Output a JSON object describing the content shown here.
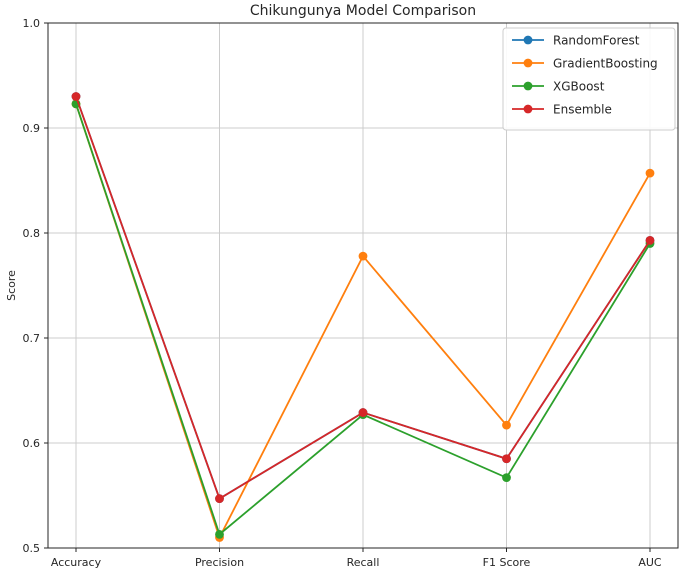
{
  "chart_data": {
    "type": "line",
    "title": "Chikungunya Model Comparison",
    "xlabel": "",
    "ylabel": "Score",
    "categories": [
      "Accuracy",
      "Precision",
      "Recall",
      "F1 Score",
      "AUC"
    ],
    "series": [
      {
        "name": "RandomForest",
        "color": "#1f77b4",
        "values": [
          0.93,
          0.547,
          0.629,
          0.585,
          0.793
        ]
      },
      {
        "name": "GradientBoosting",
        "color": "#ff7f0e",
        "values": [
          0.923,
          0.51,
          0.778,
          0.617,
          0.857
        ]
      },
      {
        "name": "XGBoost",
        "color": "#2ca02c",
        "values": [
          0.923,
          0.513,
          0.627,
          0.567,
          0.79
        ]
      },
      {
        "name": "Ensemble",
        "color": "#d62728",
        "values": [
          0.93,
          0.547,
          0.629,
          0.585,
          0.793
        ]
      }
    ],
    "ylim": [
      0.5,
      1.0
    ],
    "yticks": [
      0.5,
      0.6,
      0.7,
      0.8,
      0.9,
      1.0
    ],
    "grid": true,
    "legend_position": "upper right",
    "marker": "circle"
  }
}
